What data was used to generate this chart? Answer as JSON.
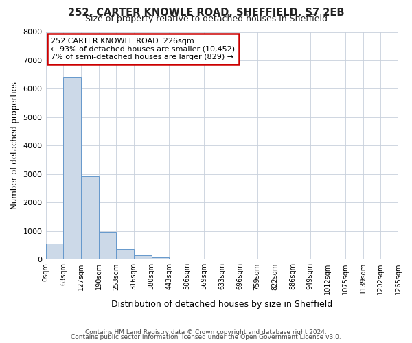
{
  "title": "252, CARTER KNOWLE ROAD, SHEFFIELD, S7 2EB",
  "subtitle": "Size of property relative to detached houses in Sheffield",
  "xlabel": "Distribution of detached houses by size in Sheffield",
  "ylabel": "Number of detached properties",
  "bar_values": [
    560,
    6420,
    2920,
    970,
    370,
    150,
    80,
    0,
    0,
    0,
    0,
    0,
    0,
    0,
    0,
    0,
    0,
    0,
    0,
    0
  ],
  "bin_edges": [
    0,
    63,
    127,
    190,
    253,
    316,
    380,
    443,
    506,
    569,
    633,
    696,
    759,
    822,
    886,
    949,
    1012,
    1075,
    1139,
    1202,
    1265
  ],
  "bar_color": "#ccd9e8",
  "bar_edge_color": "#6699cc",
  "grid_color": "#c8d0dc",
  "bg_color": "#ffffff",
  "fig_bg_color": "#ffffff",
  "annotation_text": "252 CARTER KNOWLE ROAD: 226sqm\n← 93% of detached houses are smaller (10,452)\n7% of semi-detached houses are larger (829) →",
  "annotation_box_color": "#cc0000",
  "annotation_bg": "#ffffff",
  "ylim": [
    0,
    8000
  ],
  "yticks": [
    0,
    1000,
    2000,
    3000,
    4000,
    5000,
    6000,
    7000,
    8000
  ],
  "footer1": "Contains HM Land Registry data © Crown copyright and database right 2024.",
  "footer2": "Contains public sector information licensed under the Open Government Licence v3.0."
}
